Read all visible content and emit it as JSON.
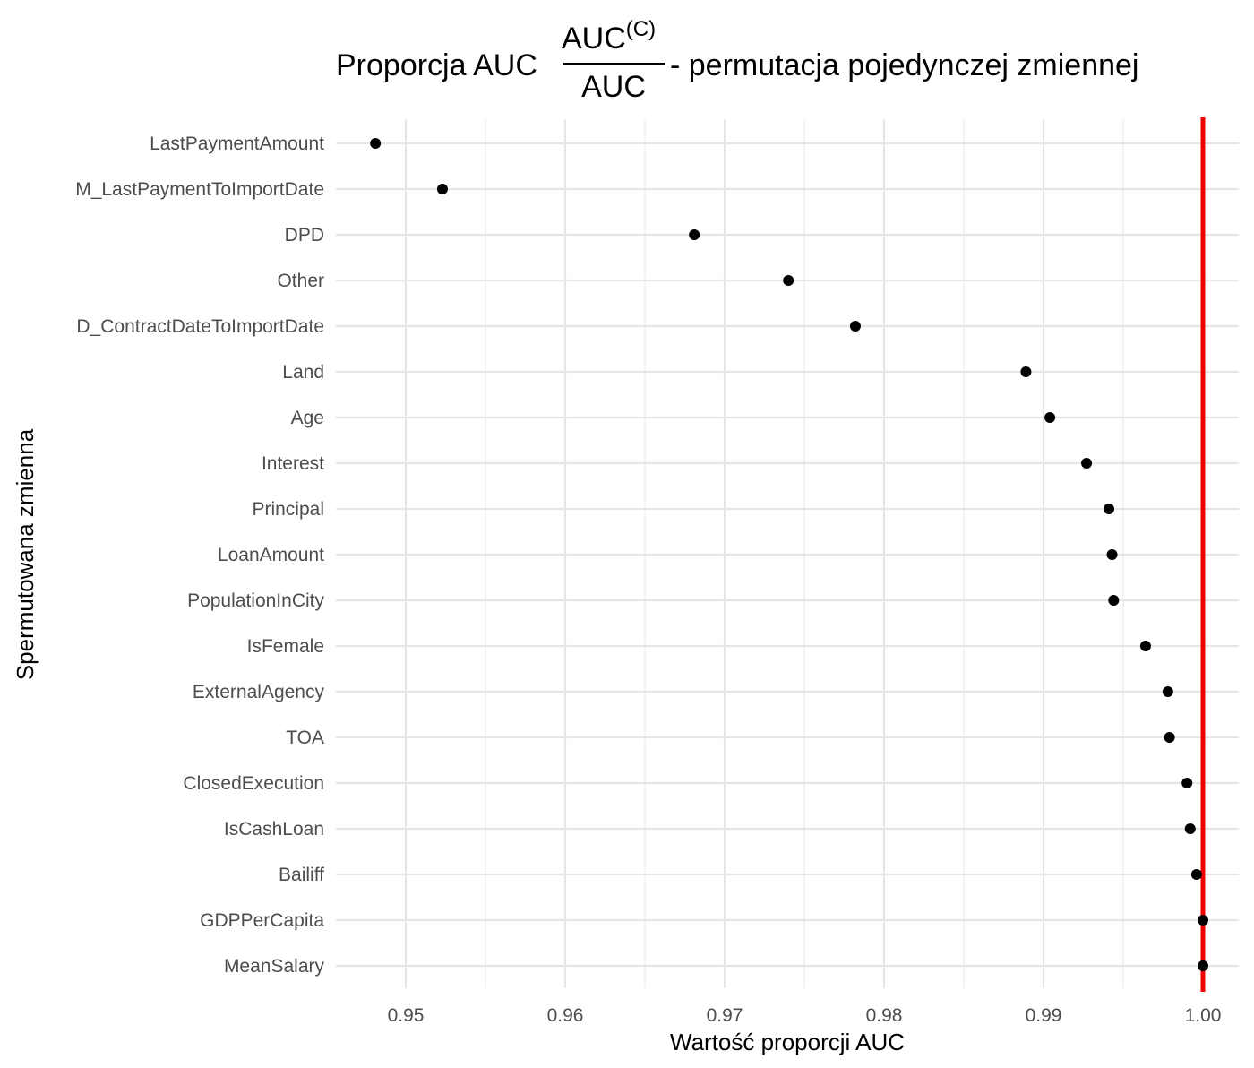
{
  "chart_data": {
    "type": "scatter",
    "title": {
      "prefix": "Proporcja AUC",
      "numerator": "AUC",
      "numerator_superscript": "(C)",
      "denominator": "AUC",
      "suffix": "- permutacja pojedynczej zmiennej"
    },
    "xlabel": "Wartość proporcji AUC",
    "ylabel": "Spermutowana zmienna",
    "xlim": [
      0.9455,
      1.0025
    ],
    "x_ticks": [
      0.95,
      0.96,
      0.97,
      0.98,
      0.99,
      1.0
    ],
    "x_tick_labels": [
      "0.95",
      "0.96",
      "0.97",
      "0.98",
      "0.99",
      "1.00"
    ],
    "grid": true,
    "reference_line": {
      "x": 1.0,
      "color": "#ee0000"
    },
    "point_color": "#000000",
    "categories": [
      "LastPaymentAmount",
      "M_LastPaymentToImportDate",
      "DPD",
      "Other",
      "D_ContractDateToImportDate",
      "Land",
      "Age",
      "Interest",
      "Principal",
      "LoanAmount",
      "PopulationInCity",
      "IsFemale",
      "ExternalAgency",
      "TOA",
      "ClosedExecution",
      "IsCashLoan",
      "Bailiff",
      "GDPPerCapita",
      "MeanSalary"
    ],
    "values": [
      0.9481,
      0.9523,
      0.9681,
      0.974,
      0.9782,
      0.9889,
      0.9904,
      0.9927,
      0.9941,
      0.9943,
      0.9944,
      0.9964,
      0.9978,
      0.9979,
      0.999,
      0.9992,
      0.9996,
      1.0,
      1.0
    ]
  }
}
